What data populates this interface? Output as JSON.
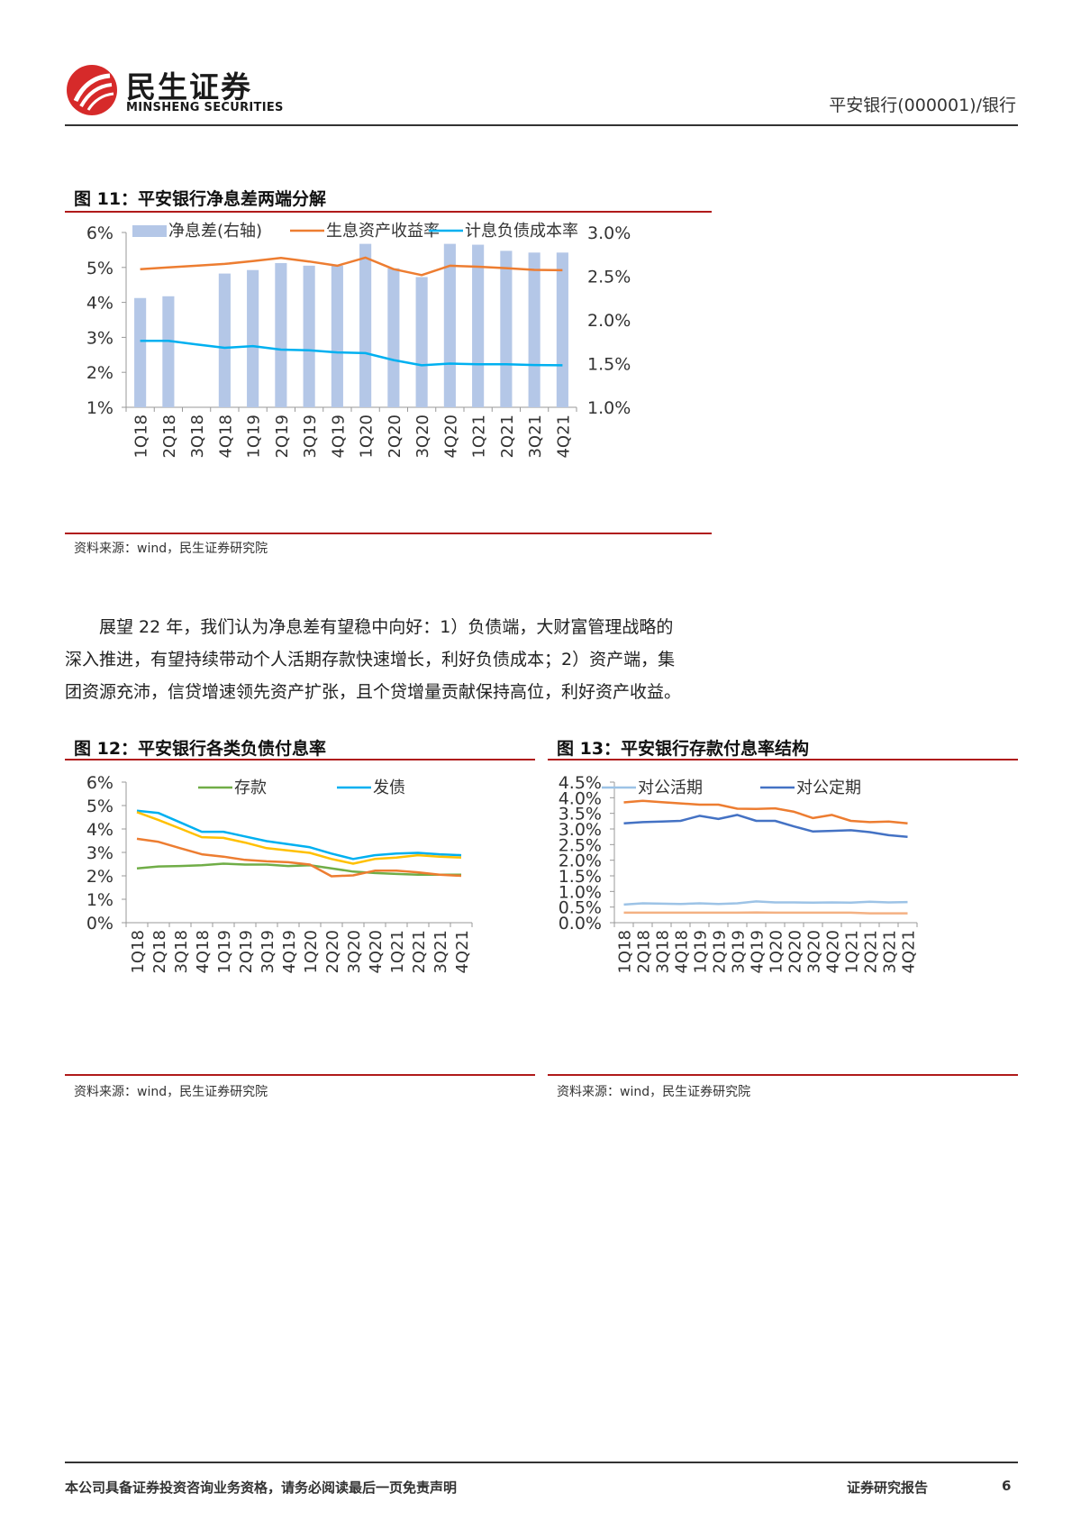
{
  "header": {
    "logo_cn": "民生证券",
    "logo_en": "MINSHENG SECURITIES",
    "right_text": "平安银行(000001)/银行"
  },
  "fig11": {
    "title": "图 11：平安银行净息差两端分解",
    "source": "资料来源：wind，民生证券研究院"
  },
  "paragraph": {
    "lines": [
      "展望 22 年，我们认为净息差有望稳中向好：1）负债端，大财富管理战略的",
      "深入推进，有望持续带动个人活期存款快速增长，利好负债成本；2）资产端，集",
      "团资源充沛，信贷增速领先资产扩张，且个贷增量贡献保持高位，利好资产收益。"
    ]
  },
  "fig12": {
    "title": "图 12：平安银行各类负债付息率",
    "source": "资料来源：wind，民生证券研究院"
  },
  "fig13": {
    "title": "图 13：平安银行存款付息率结构",
    "source": "资料来源：wind，民生证券研究院"
  },
  "footer": {
    "left": "本公司具备证券投资咨询业务资格，请务必阅读最后一页免责声明",
    "mid": "证券研究报告",
    "page": "6"
  },
  "chart_data": [
    {
      "id": "fig11",
      "type": "bar",
      "categories": [
        "1Q18",
        "2Q18",
        "3Q18",
        "4Q18",
        "1Q19",
        "2Q19",
        "3Q19",
        "4Q19",
        "1Q20",
        "2Q20",
        "3Q20",
        "4Q20",
        "1Q21",
        "2Q21",
        "3Q21",
        "4Q21"
      ],
      "left_axis": {
        "ticks": [
          "6%",
          "5%",
          "4%",
          "3%",
          "2%",
          "1%"
        ],
        "range": [
          1,
          6
        ]
      },
      "right_axis": {
        "ticks": [
          "3.0%",
          "2.5%",
          "2.0%",
          "1.5%",
          "1.0%"
        ],
        "range": [
          1.0,
          3.0
        ]
      },
      "series": [
        {
          "name": "净息差(右轴)",
          "kind": "bar",
          "axis": "right",
          "color": "#b4c7e7",
          "values": [
            2.25,
            2.27,
            null,
            2.53,
            2.57,
            2.65,
            2.62,
            2.62,
            2.87,
            2.59,
            2.49,
            2.87,
            2.86,
            2.79,
            2.77,
            2.77
          ]
        },
        {
          "name": "生息资产收益率",
          "kind": "line",
          "axis": "left",
          "color": "#ed7d31",
          "values": [
            4.95,
            5.0,
            5.05,
            5.1,
            5.18,
            5.27,
            5.17,
            5.05,
            5.28,
            4.95,
            4.78,
            5.05,
            5.02,
            4.98,
            4.93,
            4.92
          ]
        },
        {
          "name": "计息负债成本率",
          "kind": "line",
          "axis": "left",
          "color": "#00b0f0",
          "values": [
            2.9,
            2.9,
            2.8,
            2.7,
            2.75,
            2.65,
            2.63,
            2.57,
            2.55,
            2.35,
            2.2,
            2.25,
            2.23,
            2.23,
            2.21,
            2.2
          ]
        }
      ]
    },
    {
      "id": "fig12",
      "type": "line",
      "categories": [
        "1Q18",
        "2Q18",
        "3Q18",
        "4Q18",
        "1Q19",
        "2Q19",
        "3Q19",
        "4Q19",
        "1Q20",
        "2Q20",
        "3Q20",
        "4Q20",
        "1Q21",
        "2Q21",
        "3Q21",
        "4Q21"
      ],
      "y_axis": {
        "ticks": [
          "6%",
          "5%",
          "4%",
          "3%",
          "2%",
          "1%",
          "0%"
        ],
        "range": [
          0,
          6
        ]
      },
      "series": [
        {
          "name": "存款",
          "color": "#70ad47",
          "values": [
            2.32,
            2.4,
            2.42,
            2.45,
            2.52,
            2.48,
            2.48,
            2.42,
            2.45,
            2.32,
            2.18,
            2.12,
            2.08,
            2.05,
            2.05,
            2.05
          ]
        },
        {
          "name": "发债",
          "color": "#00b0f0",
          "values": [
            4.78,
            4.68,
            4.28,
            3.88,
            3.88,
            3.68,
            3.48,
            3.35,
            3.22,
            2.95,
            2.72,
            2.88,
            2.95,
            2.98,
            2.92,
            2.88
          ]
        },
        {
          "name": "",
          "color": "#ffc000",
          "values": [
            4.72,
            4.38,
            4.02,
            3.65,
            3.62,
            3.42,
            3.18,
            3.08,
            2.98,
            2.72,
            2.52,
            2.72,
            2.78,
            2.88,
            2.82,
            2.78
          ]
        },
        {
          "name": "",
          "color": "#ed7d31",
          "values": [
            3.58,
            3.45,
            3.18,
            2.92,
            2.82,
            2.68,
            2.62,
            2.58,
            2.48,
            1.98,
            2.02,
            2.22,
            2.22,
            2.15,
            2.05,
            2.0
          ]
        }
      ]
    },
    {
      "id": "fig13",
      "type": "line",
      "categories": [
        "1Q18",
        "2Q18",
        "3Q18",
        "4Q18",
        "1Q19",
        "2Q19",
        "3Q19",
        "4Q19",
        "1Q20",
        "2Q20",
        "3Q20",
        "4Q20",
        "1Q21",
        "2Q21",
        "3Q21",
        "4Q21"
      ],
      "y_axis": {
        "ticks": [
          "4.5%",
          "4.0%",
          "3.5%",
          "3.0%",
          "2.5%",
          "2.0%",
          "1.5%",
          "1.0%",
          "0.5%",
          "0.0%"
        ],
        "range": [
          0,
          4.5
        ]
      },
      "series": [
        {
          "name": "对公活期",
          "color": "#9dc3e6",
          "values": [
            0.58,
            0.62,
            0.61,
            0.6,
            0.62,
            0.6,
            0.62,
            0.68,
            0.65,
            0.65,
            0.64,
            0.65,
            0.64,
            0.67,
            0.65,
            0.66
          ]
        },
        {
          "name": "对公定期",
          "color": "#4472c4",
          "values": [
            3.18,
            3.22,
            3.24,
            3.26,
            3.42,
            3.32,
            3.45,
            3.26,
            3.26,
            3.08,
            2.92,
            2.94,
            2.96,
            2.9,
            2.8,
            2.75
          ]
        },
        {
          "name": "",
          "color": "#ed7d31",
          "values": [
            3.85,
            3.9,
            3.86,
            3.82,
            3.78,
            3.78,
            3.65,
            3.64,
            3.66,
            3.55,
            3.35,
            3.45,
            3.26,
            3.22,
            3.24,
            3.18
          ]
        },
        {
          "name": "",
          "color": "#f4b183",
          "values": [
            0.32,
            0.32,
            0.32,
            0.32,
            0.32,
            0.32,
            0.32,
            0.33,
            0.32,
            0.32,
            0.32,
            0.32,
            0.32,
            0.3,
            0.3,
            0.3
          ]
        }
      ]
    }
  ]
}
